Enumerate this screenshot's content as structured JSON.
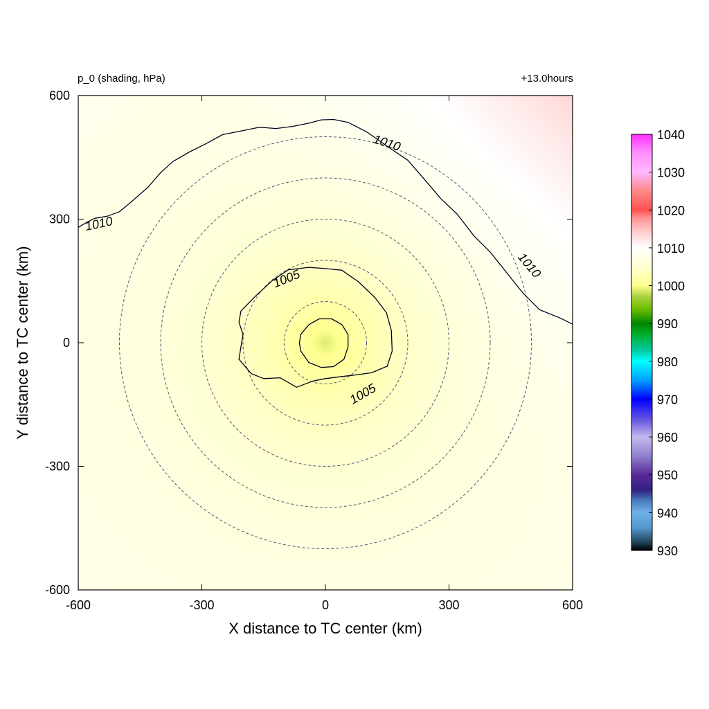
{
  "chart_data": {
    "type": "heatmap",
    "title_left": "p_0 (shading, hPa)",
    "title_right": "+13.0hours",
    "xlabel": "X distance to TC center (km)",
    "ylabel": "Y distance to TC center (km)",
    "xlim": [
      -600,
      600
    ],
    "ylim": [
      -600,
      600
    ],
    "xticks": [
      "-600",
      "-300",
      "0",
      "300",
      "600"
    ],
    "yticks": [
      "600",
      "300",
      "0",
      "-300",
      "-600"
    ],
    "x_tick_values": [
      -600,
      -300,
      0,
      300,
      600
    ],
    "y_tick_values": [
      600,
      300,
      0,
      -300,
      -600
    ],
    "field": {
      "center_value": 998.5,
      "value_at_600km": 1007,
      "ne_corner_value": 1013,
      "nw_corner_value": 1008,
      "sw_corner_value": 1006,
      "se_corner_value": 1006
    },
    "contours": [
      {
        "level": 1005,
        "labels": [
          "1005",
          "1005"
        ],
        "points": [
          [
            -205,
            77
          ],
          [
            -170,
            113
          ],
          [
            -130,
            150
          ],
          [
            -90,
            177
          ],
          [
            -40,
            183
          ],
          [
            0,
            180
          ],
          [
            40,
            176
          ],
          [
            80,
            148
          ],
          [
            120,
            110
          ],
          [
            148,
            73
          ],
          [
            160,
            30
          ],
          [
            162,
            -20
          ],
          [
            150,
            -57
          ],
          [
            112,
            -73
          ],
          [
            75,
            -78
          ],
          [
            40,
            -82
          ],
          [
            0,
            -87
          ],
          [
            -30,
            -93
          ],
          [
            -70,
            -108
          ],
          [
            -110,
            -85
          ],
          [
            -150,
            -87
          ],
          [
            -180,
            -75
          ],
          [
            -210,
            -40
          ],
          [
            -205,
            -10
          ],
          [
            -200,
            20
          ],
          [
            -210,
            50
          ]
        ]
      },
      {
        "level": 1000,
        "labels": [],
        "points": [
          [
            -60,
            20
          ],
          [
            -40,
            44
          ],
          [
            -15,
            58
          ],
          [
            15,
            58
          ],
          [
            40,
            44
          ],
          [
            55,
            20
          ],
          [
            55,
            -10
          ],
          [
            45,
            -40
          ],
          [
            20,
            -58
          ],
          [
            -10,
            -60
          ],
          [
            -40,
            -48
          ],
          [
            -60,
            -20
          ],
          [
            -63,
            0
          ]
        ]
      },
      {
        "level": 1010,
        "labels": [
          "1010",
          "1010",
          "1010"
        ],
        "open": true,
        "points": [
          [
            -600,
            280
          ],
          [
            -580,
            292
          ],
          [
            -560,
            302
          ],
          [
            -530,
            307
          ],
          [
            -500,
            318
          ],
          [
            -470,
            343
          ],
          [
            -430,
            378
          ],
          [
            -400,
            413
          ],
          [
            -370,
            440
          ],
          [
            -330,
            463
          ],
          [
            -290,
            483
          ],
          [
            -250,
            505
          ],
          [
            -200,
            515
          ],
          [
            -160,
            523
          ],
          [
            -120,
            520
          ],
          [
            -80,
            525
          ],
          [
            -40,
            533
          ],
          [
            -10,
            541
          ],
          [
            20,
            542
          ],
          [
            55,
            535
          ],
          [
            100,
            512
          ],
          [
            160,
            470
          ],
          [
            200,
            443
          ],
          [
            240,
            397
          ],
          [
            280,
            350
          ],
          [
            320,
            312
          ],
          [
            360,
            260
          ],
          [
            400,
            220
          ],
          [
            440,
            170
          ],
          [
            480,
            120
          ],
          [
            520,
            80
          ],
          [
            570,
            60
          ],
          [
            600,
            45
          ]
        ]
      }
    ],
    "dashed_radii": [
      100,
      200,
      300,
      400,
      500
    ],
    "colorbar": {
      "min": 930,
      "max": 1040,
      "ticks": [
        "1040",
        "1030",
        "1020",
        "1010",
        "1000",
        "990",
        "980",
        "970",
        "960",
        "950",
        "940",
        "930"
      ],
      "tick_values": [
        1040,
        1030,
        1020,
        1010,
        1000,
        990,
        980,
        970,
        960,
        950,
        940,
        930
      ],
      "stops": [
        [
          930,
          "#000000"
        ],
        [
          932,
          "#1f3f55"
        ],
        [
          936,
          "#5599cc"
        ],
        [
          940,
          "#70b0e8"
        ],
        [
          943,
          "#4a80c0"
        ],
        [
          946,
          "#302080"
        ],
        [
          950,
          "#5a2a98"
        ],
        [
          955,
          "#9080d0"
        ],
        [
          960,
          "#c4b8ec"
        ],
        [
          964,
          "#7060e0"
        ],
        [
          970,
          "#0000ff"
        ],
        [
          975,
          "#00a0ff"
        ],
        [
          980,
          "#00ffff"
        ],
        [
          983,
          "#00c8a0"
        ],
        [
          987,
          "#00b030"
        ],
        [
          990,
          "#008800"
        ],
        [
          994,
          "#70c000"
        ],
        [
          997,
          "#a8d040"
        ],
        [
          1000,
          "#ffff90"
        ],
        [
          1005,
          "#ffffd0"
        ],
        [
          1010,
          "#ffffff"
        ],
        [
          1014,
          "#ffd0d0"
        ],
        [
          1018,
          "#ff9090"
        ],
        [
          1020,
          "#ff5050"
        ],
        [
          1025,
          "#ff8888"
        ],
        [
          1030,
          "#ffb8ff"
        ],
        [
          1035,
          "#ff90ff"
        ],
        [
          1040,
          "#ff30ff"
        ]
      ]
    }
  }
}
